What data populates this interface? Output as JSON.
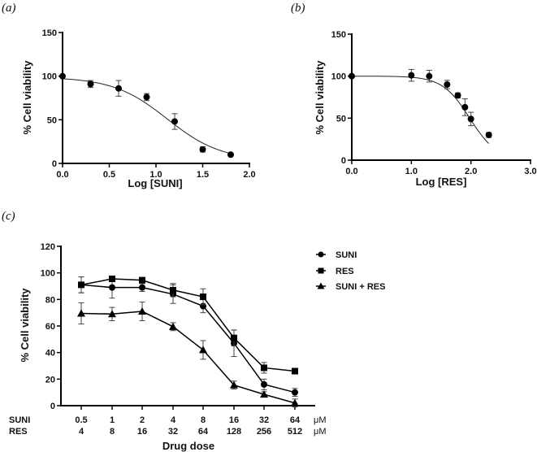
{
  "chart_data": [
    {
      "panel": "(a)",
      "type": "scatter",
      "fit": "sigmoid",
      "xlabel": "Log [SUNI]",
      "ylabel": "% Cell viability",
      "xlim": [
        0,
        2.0
      ],
      "ylim": [
        0,
        150
      ],
      "xticks": [
        "0.0",
        "0.5",
        "1.0",
        "1.5",
        "2.0"
      ],
      "xtick_values": [
        0,
        0.5,
        1.0,
        1.5,
        2.0
      ],
      "yticks": [
        "0",
        "50",
        "100",
        "150"
      ],
      "ytick_values": [
        0,
        50,
        100,
        150
      ],
      "x": [
        0,
        0.3,
        0.6,
        0.9,
        1.2,
        1.5,
        1.8
      ],
      "y": [
        100,
        91,
        86,
        76,
        48,
        16,
        10
      ],
      "err": [
        0,
        4,
        9,
        4,
        9,
        3,
        1
      ],
      "curve": {
        "top": 99,
        "bottom": 3,
        "logIC50": 1.12,
        "hill": 1.5
      }
    },
    {
      "panel": "(b)",
      "type": "scatter",
      "fit": "sigmoid",
      "xlabel": "Log [RES]",
      "ylabel": "% Cell viability",
      "xlim": [
        0,
        3.0
      ],
      "ylim": [
        0,
        150
      ],
      "xticks": [
        "0.0",
        "1.0",
        "2.0",
        "3.0"
      ],
      "xtick_values": [
        0,
        1.0,
        2.0,
        3.0
      ],
      "yticks": [
        "0",
        "50",
        "100",
        "150"
      ],
      "ytick_values": [
        0,
        50,
        100,
        150
      ],
      "x": [
        0,
        1.0,
        1.3,
        1.6,
        1.78,
        1.9,
        2.0,
        2.3
      ],
      "y": [
        100,
        101,
        100,
        90,
        77,
        63,
        49,
        30
      ],
      "err": [
        2,
        7,
        7,
        5,
        3,
        10,
        8,
        3
      ],
      "curve": {
        "top": 100,
        "bottom": 0,
        "logIC50": 1.98,
        "hill": 1.9,
        "xmax": 2.3
      }
    },
    {
      "panel": "(c)",
      "type": "line",
      "xlabel": "Drug dose",
      "ylabel": "% Cell viability",
      "ylim": [
        0,
        120
      ],
      "yticks": [
        "0",
        "20",
        "40",
        "60",
        "80",
        "100",
        "120"
      ],
      "ytick_values": [
        0,
        20,
        40,
        60,
        80,
        100,
        120
      ],
      "row_labels": [
        "SUNI",
        "RES"
      ],
      "units": [
        "μM",
        "μM"
      ],
      "categories_suni": [
        "0.5",
        "1",
        "2",
        "4",
        "8",
        "16",
        "32",
        "64"
      ],
      "categories_res": [
        "4",
        "8",
        "16",
        "32",
        "64",
        "128",
        "256",
        "512"
      ],
      "series": [
        {
          "name": "SUNI",
          "marker": "circle",
          "values": [
            91,
            89,
            89,
            84,
            75,
            47,
            16,
            10
          ],
          "err": [
            6,
            8,
            3,
            7,
            5,
            10,
            4,
            3
          ]
        },
        {
          "name": "RES",
          "marker": "square",
          "values": [
            91,
            95.5,
            94.5,
            87,
            82,
            51,
            28.5,
            26
          ],
          "err": [
            6,
            2,
            2,
            5,
            6,
            6,
            4,
            1
          ]
        },
        {
          "name": "SUNI + RES",
          "marker": "triangle",
          "values": [
            69.5,
            69,
            71,
            59.5,
            42,
            15.5,
            8.5,
            2
          ],
          "err": [
            8,
            5,
            7,
            3,
            7,
            3,
            2,
            3
          ]
        }
      ],
      "legend_position": "top-right"
    }
  ]
}
